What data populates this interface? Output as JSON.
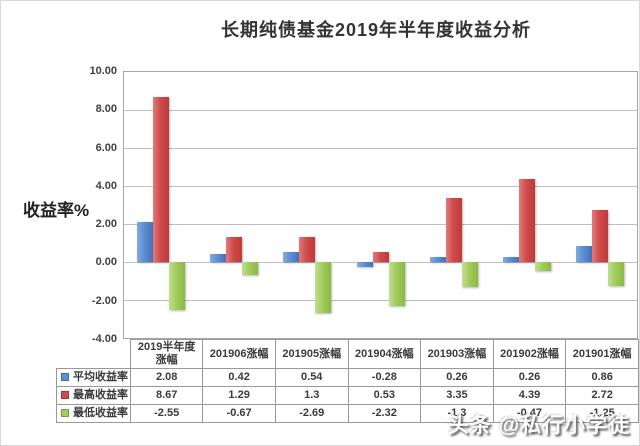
{
  "title": "长期纯债基金2019年半年度收益分析",
  "watermark": "头条 @私行小学徒",
  "chart_data": {
    "type": "bar",
    "title": "长期纯债基金2019年半年度收益分析",
    "ylabel": "收益率%",
    "ylim": [
      -4,
      10
    ],
    "ytick_step": 2,
    "ytick_labels": [
      "10.00",
      "8.00",
      "6.00",
      "4.00",
      "2.00",
      "0.00",
      "-2.00",
      "-4.00"
    ],
    "grid": true,
    "legend_position": "data-table-left",
    "categories": [
      "2019半年度涨幅",
      "201906涨幅",
      "201905涨幅",
      "201904涨幅",
      "201903涨幅",
      "201902涨幅",
      "201901涨幅"
    ],
    "series": [
      {
        "name": "平均收益率",
        "color": "#5b8fd4",
        "values": [
          2.08,
          0.42,
          0.54,
          -0.28,
          0.26,
          0.26,
          0.86
        ]
      },
      {
        "name": "最高收益率",
        "color": "#d04b4b",
        "values": [
          8.67,
          1.29,
          1.3,
          0.53,
          3.35,
          4.39,
          2.72
        ]
      },
      {
        "name": "最低收益率",
        "color": "#a2cc5d",
        "values": [
          -2.55,
          -0.67,
          -2.69,
          -2.32,
          -1.3,
          -0.47,
          -1.25
        ]
      }
    ],
    "table_values": [
      [
        "2.08",
        "0.42",
        "0.54",
        "-0.28",
        "0.26",
        "0.26",
        "0.86"
      ],
      [
        "8.67",
        "1.29",
        "1.3",
        "0.53",
        "3.35",
        "4.39",
        "2.72"
      ],
      [
        "-2.55",
        "-0.67",
        "-2.69",
        "-2.32",
        "-1.3",
        "-0.47",
        "-1.25"
      ]
    ]
  }
}
